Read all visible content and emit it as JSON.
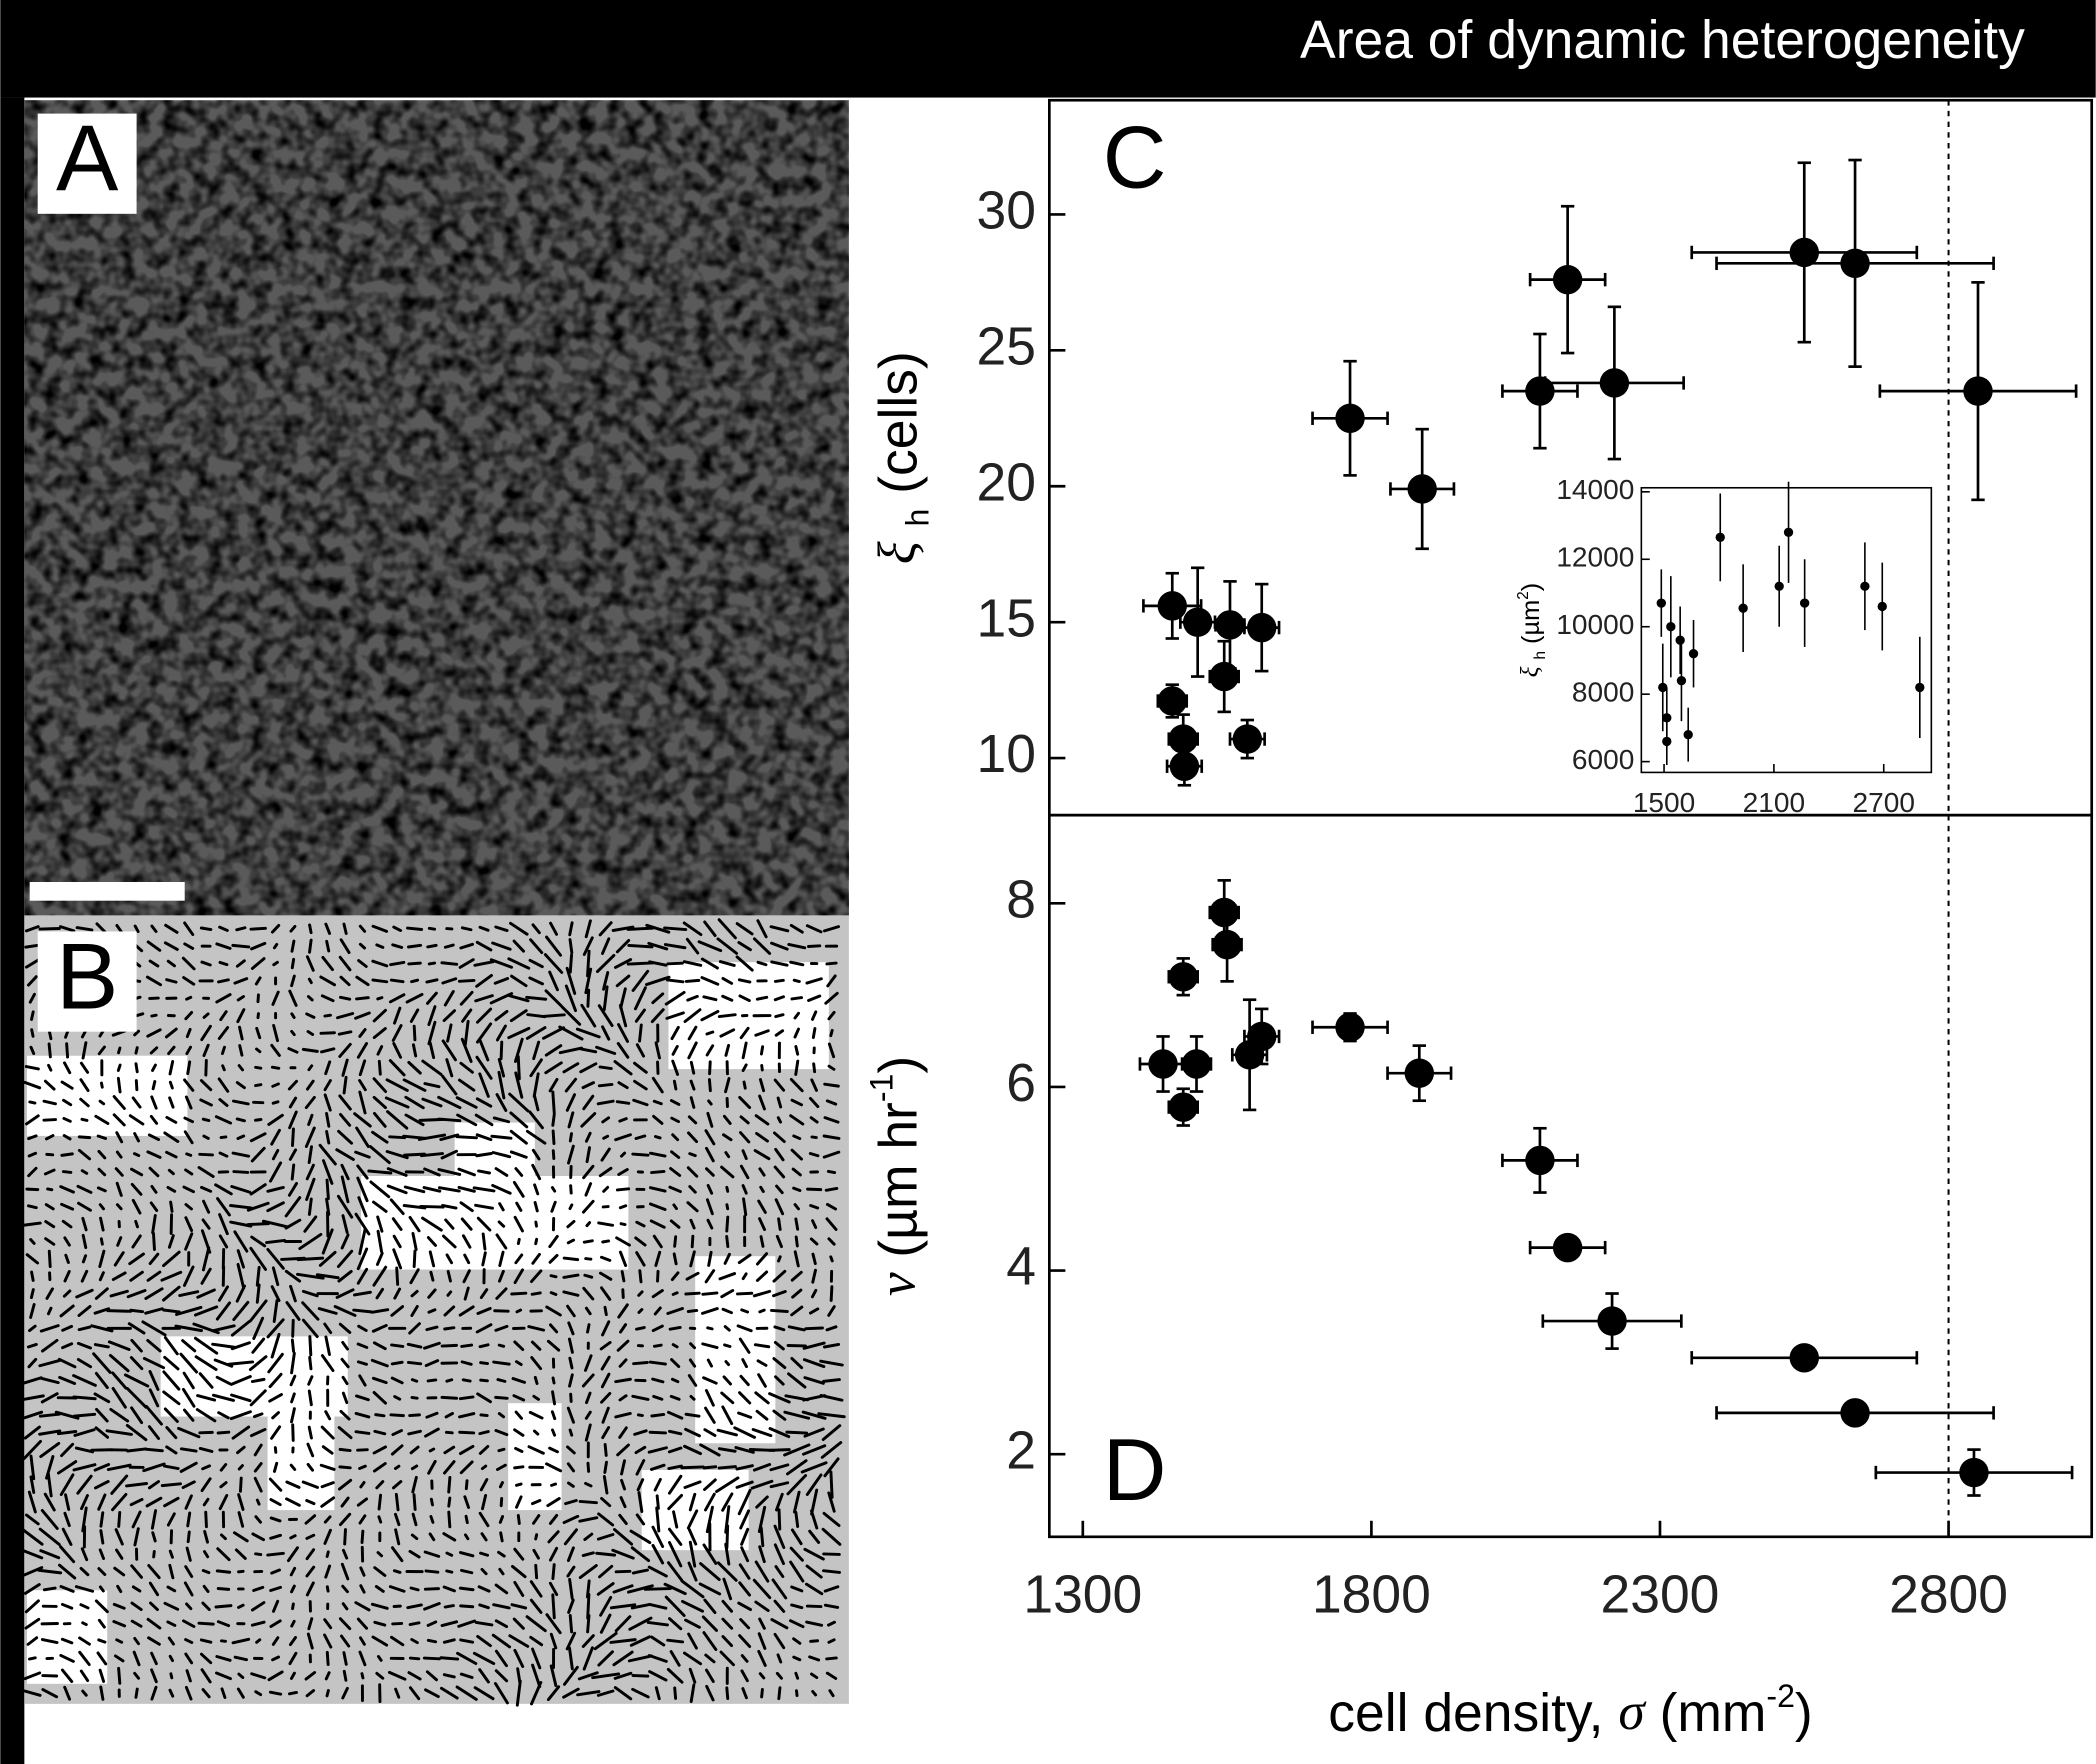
{
  "header": {
    "title": "Area of dynamic heterogeneity"
  },
  "panels": {
    "A": {
      "label": "A"
    },
    "B": {
      "label": "B"
    }
  },
  "chart_data": [
    {
      "type": "scatter",
      "panel_label": "C",
      "ylabel": {
        "symbol": "ξ",
        "subscript": "h",
        "text": "(cells)"
      },
      "xlim": [
        1242,
        3048
      ],
      "ylim": [
        7.9,
        34.2
      ],
      "yticks": [
        10,
        15,
        20,
        25,
        30
      ],
      "vline": 2800,
      "series": [
        {
          "color": "#000000",
          "x": [
            1455,
            1499,
            1555,
            1610,
            1545,
            1455,
            1474,
            1585,
            1476,
            1763,
            1888,
            2092,
            2140,
            2221,
            2550,
            2638,
            2851
          ],
          "values": [
            15.6,
            15.0,
            14.9,
            14.8,
            13.0,
            12.1,
            10.7,
            10.7,
            9.7,
            22.5,
            19.9,
            23.5,
            27.6,
            23.8,
            28.6,
            28.2,
            23.5
          ],
          "y_errors": [
            1.2,
            2.0,
            1.6,
            1.6,
            1.3,
            0.6,
            0.9,
            0.7,
            0.7,
            2.1,
            2.2,
            2.1,
            2.7,
            2.8,
            3.3,
            3.8,
            4.0
          ],
          "x_errors": [
            50,
            30,
            25,
            30,
            25,
            25,
            25,
            30,
            30,
            65,
            55,
            65,
            65,
            120,
            195,
            240,
            170
          ]
        }
      ]
    },
    {
      "type": "scatter",
      "panel_label": "D",
      "ylabel": {
        "symbol": "v",
        "text": "(µm hr",
        "superscript": "-1",
        "close": ")"
      },
      "xlabel": {
        "text": "cell density, ",
        "symbol": "σ",
        "unit": "(mm",
        "superscript": "-2",
        "close": ")"
      },
      "xlim": [
        1242,
        3048
      ],
      "ylim": [
        1.1,
        8.96
      ],
      "xticks": [
        1300,
        1800,
        2300,
        2800
      ],
      "yticks": [
        2,
        4,
        6,
        8
      ],
      "vline": 2800,
      "series": [
        {
          "color": "#000000",
          "x": [
            1439,
            1474,
            1474,
            1497,
            1545,
            1550,
            1589,
            1610,
            1763,
            1883,
            2092,
            2140,
            2217,
            2550,
            2638,
            2844
          ],
          "values": [
            6.25,
            5.78,
            7.2,
            6.25,
            7.9,
            7.55,
            6.35,
            6.55,
            6.65,
            6.15,
            5.2,
            4.25,
            3.45,
            3.05,
            2.45,
            1.8
          ],
          "y_errors": [
            0.3,
            0.2,
            0.2,
            0.3,
            0.35,
            0.4,
            0.6,
            0.3,
            0.15,
            0.3,
            0.35,
            0.1,
            0.3,
            0.1,
            0.1,
            0.25
          ],
          "x_errors": [
            40,
            25,
            25,
            25,
            25,
            25,
            30,
            30,
            65,
            55,
            65,
            65,
            120,
            195,
            240,
            170
          ]
        }
      ]
    },
    {
      "type": "scatter",
      "ylabel": {
        "symbol": "ξ",
        "subscript": "h",
        "text": "(µm",
        "superscript": "2",
        "close": ")"
      },
      "xlim": [
        1376,
        2960
      ],
      "ylim": [
        5680,
        14120
      ],
      "xticks": [
        1500,
        2100,
        2700
      ],
      "yticks": [
        6000,
        8000,
        10000,
        12000,
        14000
      ],
      "series": [
        {
          "color": "#000000",
          "x": [
            1485,
            1537,
            1493,
            1515,
            1515,
            1588,
            1595,
            1632,
            1661,
            1807,
            1932,
            2129,
            2180,
            2268,
            2597,
            2692,
            2897
          ],
          "values": [
            10700,
            10000,
            8200,
            7300,
            6600,
            9600,
            8400,
            6800,
            9200,
            12650,
            10550,
            11200,
            12800,
            10700,
            11200,
            10600,
            8200
          ],
          "y_errors": [
            1000,
            1500,
            1300,
            900,
            700,
            1000,
            1200,
            800,
            1000,
            1300,
            1300,
            1200,
            1500,
            1300,
            1300,
            1300,
            1500
          ]
        }
      ]
    }
  ]
}
